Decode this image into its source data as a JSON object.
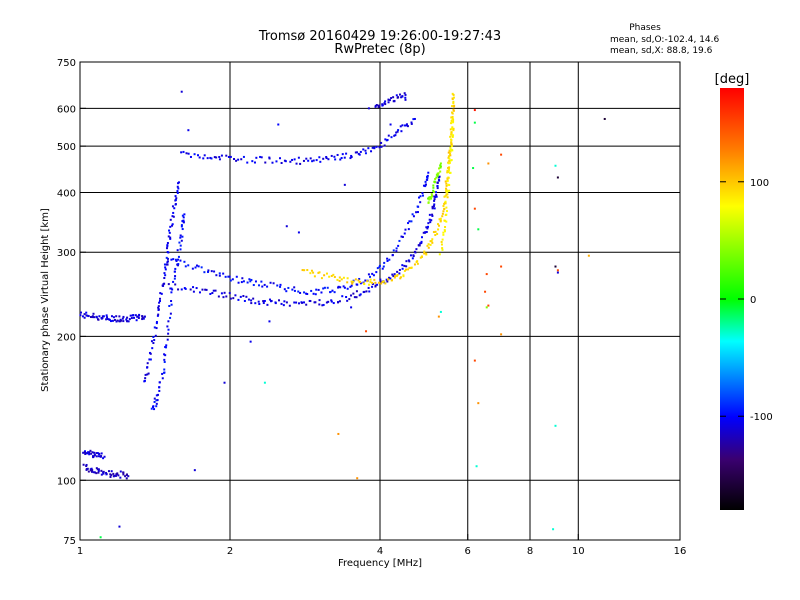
{
  "chart_data": {
    "type": "scatter",
    "title": "Tromsø 20160429 19:26:00-19:27:43",
    "subtitle": "RwPretec (8p)",
    "xlabel": "Frequency [MHz]",
    "ylabel": "Stationary phase Virtual Height [km]",
    "x_scale": "log",
    "y_scale": "log",
    "xlim": [
      1,
      16
    ],
    "ylim": [
      75,
      750
    ],
    "x_ticks": [
      1,
      2,
      4,
      6,
      8,
      10,
      16
    ],
    "x_gridlines": [
      2,
      4,
      6,
      8,
      10
    ],
    "y_ticks": [
      75,
      100,
      200,
      300,
      400,
      500,
      600,
      750
    ],
    "y_gridlines": [
      100,
      200,
      300,
      400,
      500,
      600
    ],
    "grid": true,
    "stats": {
      "header": "Phases",
      "line1": "mean, sd,O:-102.4, 14.6",
      "line2": "mean, sd,X:  88.8, 19.6"
    },
    "colorbar": {
      "label": "[deg]",
      "range": [
        -180,
        180
      ],
      "ticks": [
        100,
        0,
        -100
      ],
      "colors": [
        "#ff0000",
        "#ff8800",
        "#ffff00",
        "#00ff00",
        "#00ffff",
        "#0000ff",
        "#000000"
      ]
    },
    "traces": [
      {
        "name_hint": "o-low",
        "phase": -110,
        "points": [
          [
            1.0,
            222
          ],
          [
            1.05,
            221
          ],
          [
            1.1,
            219
          ],
          [
            1.15,
            218
          ],
          [
            1.2,
            218
          ],
          [
            1.25,
            218
          ],
          [
            1.3,
            219
          ],
          [
            1.35,
            220
          ]
        ]
      },
      {
        "name_hint": "es",
        "phase": -115,
        "points": [
          [
            1.02,
            107
          ],
          [
            1.06,
            105
          ],
          [
            1.1,
            104
          ],
          [
            1.15,
            103
          ],
          [
            1.2,
            103
          ],
          [
            1.25,
            102
          ]
        ]
      },
      {
        "name_hint": "es2",
        "phase": -110,
        "points": [
          [
            1.02,
            115
          ],
          [
            1.05,
            114
          ],
          [
            1.08,
            113
          ],
          [
            1.12,
            112
          ]
        ]
      },
      {
        "name_hint": "f-spread-1",
        "phase": -105,
        "points": [
          [
            1.35,
            160
          ],
          [
            1.38,
            180
          ],
          [
            1.42,
            210
          ],
          [
            1.45,
            240
          ],
          [
            1.48,
            270
          ],
          [
            1.5,
            300
          ],
          [
            1.52,
            340
          ],
          [
            1.55,
            380
          ],
          [
            1.58,
            420
          ]
        ]
      },
      {
        "name_hint": "f-spread-2",
        "phase": -100,
        "points": [
          [
            1.4,
            140
          ],
          [
            1.43,
            150
          ],
          [
            1.47,
            170
          ],
          [
            1.5,
            200
          ],
          [
            1.53,
            250
          ],
          [
            1.57,
            290
          ],
          [
            1.6,
            330
          ],
          [
            1.62,
            360
          ]
        ]
      },
      {
        "name_hint": "o-trace-low",
        "phase": -108,
        "points": [
          [
            1.5,
            255
          ],
          [
            1.7,
            250
          ],
          [
            1.9,
            246
          ],
          [
            2.1,
            240
          ],
          [
            2.3,
            236
          ],
          [
            2.5,
            235
          ],
          [
            2.8,
            234
          ],
          [
            3.1,
            236
          ],
          [
            3.4,
            240
          ],
          [
            3.7,
            248
          ],
          [
            4.0,
            258
          ],
          [
            4.3,
            270
          ],
          [
            4.6,
            290
          ],
          [
            4.8,
            310
          ],
          [
            5.0,
            340
          ],
          [
            5.1,
            370
          ],
          [
            5.2,
            400
          ],
          [
            5.25,
            430
          ]
        ]
      },
      {
        "name_hint": "o-trace-mid",
        "phase": -100,
        "points": [
          [
            1.5,
            290
          ],
          [
            1.7,
            280
          ],
          [
            1.9,
            270
          ],
          [
            2.1,
            262
          ],
          [
            2.3,
            258
          ],
          [
            2.6,
            252
          ],
          [
            2.9,
            248
          ],
          [
            3.2,
            250
          ],
          [
            3.5,
            256
          ],
          [
            3.8,
            266
          ],
          [
            4.1,
            285
          ],
          [
            4.4,
            315
          ],
          [
            4.7,
            360
          ],
          [
            4.9,
            410
          ],
          [
            5.0,
            440
          ]
        ]
      },
      {
        "name_hint": "o-upper",
        "phase": -105,
        "points": [
          [
            1.6,
            480
          ],
          [
            1.8,
            474
          ],
          [
            2.0,
            470
          ],
          [
            2.3,
            468
          ],
          [
            2.6,
            466
          ],
          [
            2.9,
            466
          ],
          [
            3.2,
            470
          ],
          [
            3.5,
            478
          ],
          [
            3.8,
            490
          ],
          [
            4.1,
            510
          ],
          [
            4.4,
            540
          ],
          [
            4.7,
            570
          ]
        ]
      },
      {
        "name_hint": "o-upper-2",
        "phase": -110,
        "points": [
          [
            3.9,
            600
          ],
          [
            4.1,
            615
          ],
          [
            4.3,
            628
          ],
          [
            4.5,
            640
          ]
        ]
      },
      {
        "name_hint": "x-trace",
        "phase": 95,
        "points": [
          [
            2.8,
            275
          ],
          [
            3.1,
            268
          ],
          [
            3.4,
            262
          ],
          [
            3.7,
            260
          ],
          [
            4.0,
            260
          ],
          [
            4.3,
            265
          ],
          [
            4.6,
            275
          ],
          [
            4.9,
            295
          ],
          [
            5.1,
            320
          ],
          [
            5.3,
            350
          ],
          [
            5.4,
            380
          ],
          [
            5.45,
            420
          ],
          [
            5.5,
            460
          ],
          [
            5.55,
            500
          ],
          [
            5.58,
            550
          ],
          [
            5.6,
            600
          ],
          [
            5.62,
            640
          ]
        ]
      },
      {
        "name_hint": "x-trace-2",
        "phase": 85,
        "points": [
          [
            5.3,
            300
          ],
          [
            5.4,
            340
          ],
          [
            5.45,
            390
          ],
          [
            5.5,
            430
          ],
          [
            5.55,
            480
          ],
          [
            5.58,
            520
          ],
          [
            5.6,
            570
          ]
        ]
      },
      {
        "name_hint": "x-green",
        "phase": 40,
        "points": [
          [
            5.0,
            380
          ],
          [
            5.1,
            400
          ],
          [
            5.2,
            430
          ],
          [
            5.3,
            460
          ]
        ]
      }
    ],
    "scatter": [
      {
        "x": 1.6,
        "y": 650,
        "p": -110
      },
      {
        "x": 1.65,
        "y": 540,
        "p": -105
      },
      {
        "x": 2.5,
        "y": 555,
        "p": -100
      },
      {
        "x": 3.8,
        "y": 600,
        "p": -110
      },
      {
        "x": 3.4,
        "y": 415,
        "p": -110
      },
      {
        "x": 2.6,
        "y": 340,
        "p": -110
      },
      {
        "x": 2.75,
        "y": 330,
        "p": -105
      },
      {
        "x": 1.2,
        "y": 80,
        "p": -110
      },
      {
        "x": 1.1,
        "y": 76,
        "p": -10
      },
      {
        "x": 1.7,
        "y": 105,
        "p": -110
      },
      {
        "x": 1.95,
        "y": 160,
        "p": -110
      },
      {
        "x": 2.35,
        "y": 160,
        "p": -30
      },
      {
        "x": 3.3,
        "y": 125,
        "p": 120
      },
      {
        "x": 3.6,
        "y": 101,
        "p": 120
      },
      {
        "x": 3.75,
        "y": 205,
        "p": 150
      },
      {
        "x": 6.2,
        "y": 595,
        "p": 170
      },
      {
        "x": 6.2,
        "y": 560,
        "p": -10
      },
      {
        "x": 6.15,
        "y": 450,
        "p": -10
      },
      {
        "x": 6.6,
        "y": 460,
        "p": 120
      },
      {
        "x": 7.0,
        "y": 480,
        "p": 150
      },
      {
        "x": 6.2,
        "y": 370,
        "p": 150
      },
      {
        "x": 6.3,
        "y": 335,
        "p": -10
      },
      {
        "x": 6.55,
        "y": 270,
        "p": 150
      },
      {
        "x": 6.5,
        "y": 248,
        "p": 150
      },
      {
        "x": 6.6,
        "y": 232,
        "p": 150
      },
      {
        "x": 6.55,
        "y": 230,
        "p": 40
      },
      {
        "x": 7.0,
        "y": 280,
        "p": 150
      },
      {
        "x": 7.0,
        "y": 202,
        "p": 120
      },
      {
        "x": 6.2,
        "y": 178,
        "p": 150
      },
      {
        "x": 6.3,
        "y": 145,
        "p": 120
      },
      {
        "x": 6.25,
        "y": 107,
        "p": -30
      },
      {
        "x": 9.0,
        "y": 455,
        "p": -30
      },
      {
        "x": 9.1,
        "y": 430,
        "p": -160
      },
      {
        "x": 9.0,
        "y": 280,
        "p": -160
      },
      {
        "x": 9.1,
        "y": 275,
        "p": 150
      },
      {
        "x": 9.1,
        "y": 272,
        "p": -110
      },
      {
        "x": 8.9,
        "y": 79,
        "p": -30
      },
      {
        "x": 9.0,
        "y": 130,
        "p": -30
      },
      {
        "x": 10.5,
        "y": 295,
        "p": 110
      },
      {
        "x": 11.3,
        "y": 570,
        "p": -160
      },
      {
        "x": 5.3,
        "y": 225,
        "p": -30
      },
      {
        "x": 5.25,
        "y": 220,
        "p": 120
      },
      {
        "x": 4.5,
        "y": 625,
        "p": -110
      },
      {
        "x": 4.2,
        "y": 555,
        "p": -105
      },
      {
        "x": 3.5,
        "y": 230,
        "p": -105
      },
      {
        "x": 2.4,
        "y": 215,
        "p": -105
      },
      {
        "x": 2.2,
        "y": 195,
        "p": -105
      }
    ]
  }
}
